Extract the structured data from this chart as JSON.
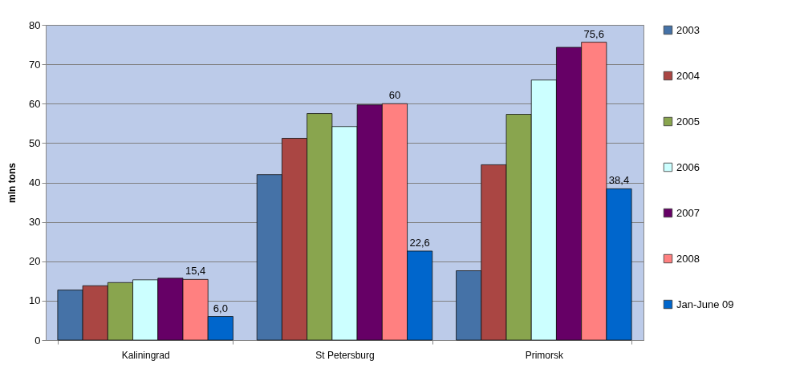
{
  "chart_data": {
    "type": "bar",
    "ylabel": "mln tons",
    "categories": [
      "Kaliningrad",
      "St Petersburg",
      "Primorsk"
    ],
    "series": [
      {
        "name": "2003",
        "color": "#4572a7",
        "values": [
          12.7,
          42.0,
          17.6
        ]
      },
      {
        "name": "2004",
        "color": "#aa4643",
        "values": [
          13.8,
          51.2,
          44.5
        ]
      },
      {
        "name": "2005",
        "color": "#89a54e",
        "values": [
          14.6,
          57.5,
          57.3
        ]
      },
      {
        "name": "2006",
        "color": "#ccffff",
        "values": [
          15.3,
          54.2,
          66.0
        ]
      },
      {
        "name": "2007",
        "color": "#660066",
        "values": [
          15.7,
          59.7,
          74.3
        ]
      },
      {
        "name": "2008",
        "color": "#ff8080",
        "values": [
          15.4,
          60,
          75.6
        ],
        "value_labels": [
          "15,4",
          "60",
          "75,6"
        ]
      },
      {
        "name": "Jan-June 09",
        "color": "#0066cc",
        "values": [
          6.0,
          22.6,
          38.4
        ],
        "value_labels": [
          "6,0",
          "22,6",
          "38,4"
        ]
      }
    ],
    "ylim": [
      0,
      80
    ],
    "yticks": [
      0,
      10,
      20,
      30,
      40,
      50,
      60,
      70,
      80
    ],
    "grid": "y",
    "legend": "right"
  }
}
